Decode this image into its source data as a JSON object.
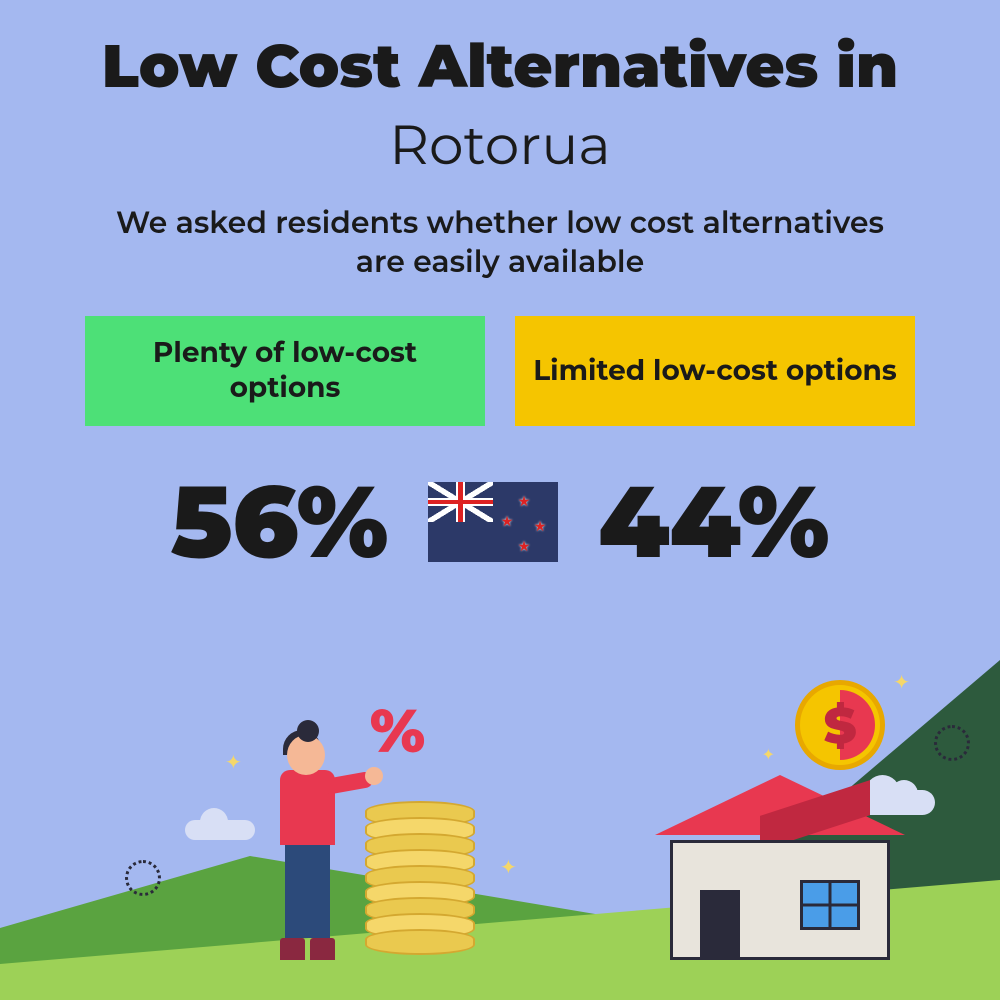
{
  "header": {
    "title_line1": "Low Cost Alternatives in",
    "title_line2": "Rotorua",
    "subtitle": "We asked residents whether low cost alternatives are easily available"
  },
  "options": {
    "plenty": {
      "label": "Plenty of low-cost options",
      "bg_color": "#4de077",
      "value": "56%"
    },
    "limited": {
      "label": "Limited low-cost options",
      "bg_color": "#f5c500",
      "value": "44%"
    }
  },
  "flag": {
    "country": "New Zealand",
    "bg_color": "#2c3968"
  },
  "styling": {
    "background_color": "#a4b8f0",
    "title_fontsize": 60,
    "title_fontweight": 900,
    "subtitle_fontsize": 30,
    "box_fontsize": 28,
    "stat_fontsize": 100,
    "text_color": "#1a1a1a"
  },
  "illustration": {
    "ground_dark": "#5aa340",
    "ground_light": "#9dd157",
    "triangle_color": "#2d5a3d",
    "house_body": "#e8e4dc",
    "house_roof": "#e83850",
    "house_outline": "#2a2a3a",
    "window_color": "#4a9de8",
    "coin_color": "#f5c500",
    "coin_border": "#e8a800",
    "coin_accent": "#e83850",
    "dollar_sign": "$",
    "percent_sign": "%",
    "percent_color": "#e83850",
    "person_shirt": "#e83850",
    "person_pants": "#2c4a7a",
    "person_skin": "#f5b896",
    "person_hair": "#2a2a3a",
    "person_shoes": "#8a2840",
    "stack_color": "#f5d76a",
    "stack_border": "#d4a830",
    "cloud_color": "#d8dff5",
    "sparkle_color": "#f5d76a",
    "coin_stack_count": 9
  }
}
